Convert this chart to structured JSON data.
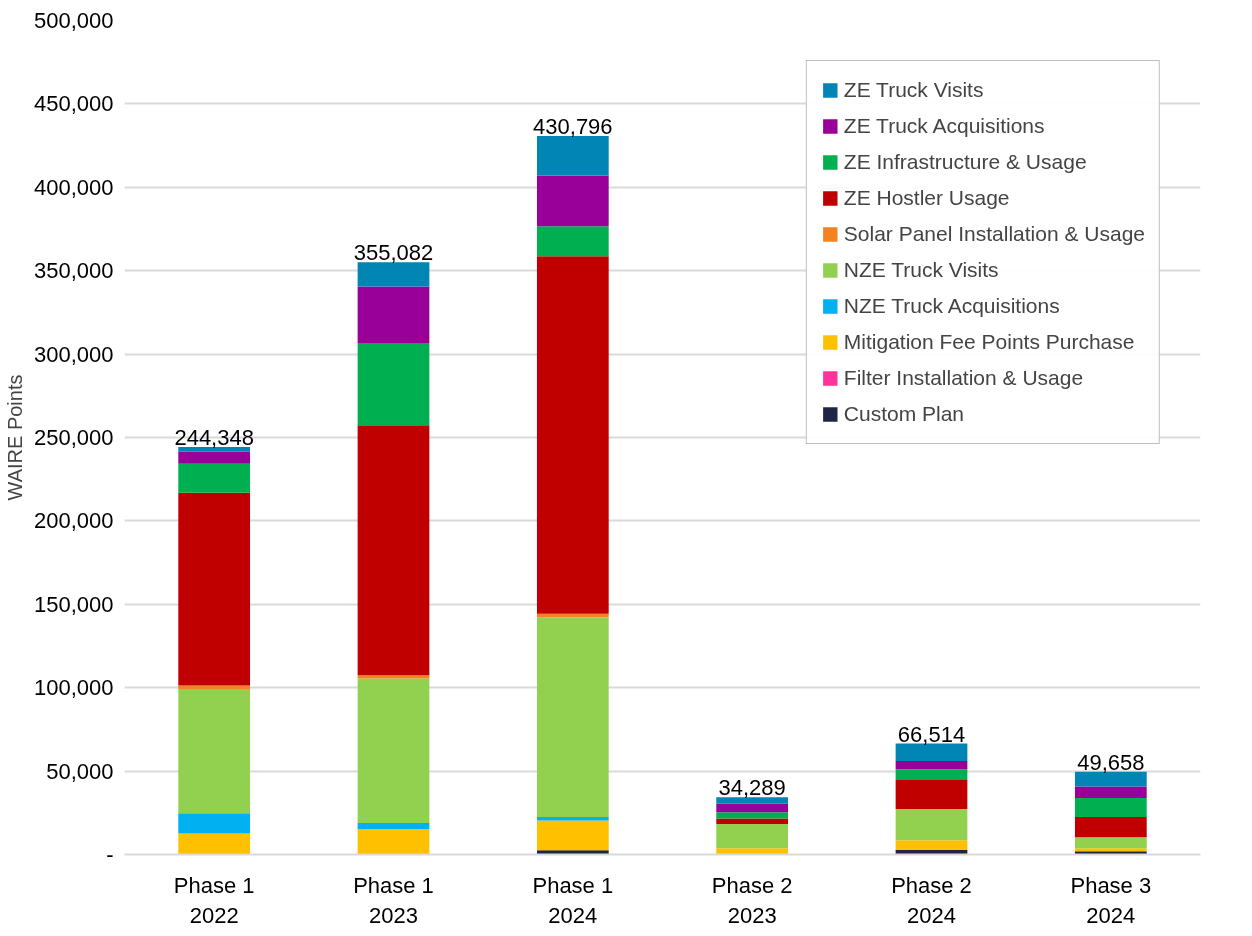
{
  "chart_data": {
    "type": "bar",
    "stacked": true,
    "ylabel": "WAIRE Points",
    "categories": [
      "Phase 1\n2022",
      "Phase 1\n2023",
      "Phase 1\n2024",
      "Phase 2\n2023",
      "Phase 2\n2024",
      "Phase 3\n2024"
    ],
    "series": [
      {
        "name": "Custom Plan",
        "color": "#1f2545",
        "values": [
          0,
          0,
          2500,
          0,
          2900,
          1500
        ]
      },
      {
        "name": "Filter Installation & Usage",
        "color": "#ff3399",
        "values": [
          0,
          0,
          0,
          0,
          0,
          600
        ]
      },
      {
        "name": "Mitigation Fee Points Purchase",
        "color": "#ffc000",
        "values": [
          12600,
          15300,
          17900,
          3800,
          5700,
          1700
        ]
      },
      {
        "name": "NZE Truck Acquisitions",
        "color": "#00b0f0",
        "values": [
          12200,
          3600,
          2100,
          0,
          0,
          0
        ]
      },
      {
        "name": "NZE Truck Visits",
        "color": "#92d050",
        "values": [
          74000,
          86600,
          119800,
          14500,
          18700,
          6500
        ]
      },
      {
        "name": "Solar Panel Installation & Usage",
        "color": "#f58220",
        "values": [
          2500,
          1900,
          2100,
          0,
          0,
          0
        ]
      },
      {
        "name": "ZE Hostler Usage",
        "color": "#c00000",
        "values": [
          115600,
          150000,
          214300,
          3300,
          17300,
          12200
        ]
      },
      {
        "name": "ZE Infrastructure & Usage",
        "color": "#00b050",
        "values": [
          17400,
          49200,
          17900,
          3800,
          6500,
          11300
        ]
      },
      {
        "name": "ZE Truck Acquisitions",
        "color": "#990099",
        "values": [
          7200,
          34000,
          30500,
          5100,
          5000,
          7000
        ]
      },
      {
        "name": "ZE Truck Visits",
        "color": "#0085b4",
        "values": [
          2848,
          14482,
          23696,
          3789,
          10414,
          8858
        ]
      }
    ],
    "totals": [
      "244,348",
      "355,082",
      "430,796",
      "34,289",
      "66,514",
      "49,658"
    ],
    "ylim": [
      0,
      500000
    ],
    "yticks": [
      {
        "value": 0,
        "label": "-"
      },
      {
        "value": 50000,
        "label": "50,000"
      },
      {
        "value": 100000,
        "label": "100,000"
      },
      {
        "value": 150000,
        "label": "150,000"
      },
      {
        "value": 200000,
        "label": "200,000"
      },
      {
        "value": 250000,
        "label": "250,000"
      },
      {
        "value": 300000,
        "label": "300,000"
      },
      {
        "value": 350000,
        "label": "350,000"
      },
      {
        "value": 400000,
        "label": "400,000"
      },
      {
        "value": 450000,
        "label": "450,000"
      },
      {
        "value": 500000,
        "label": "500,000"
      }
    ],
    "grid": "y",
    "legend": "top right"
  }
}
